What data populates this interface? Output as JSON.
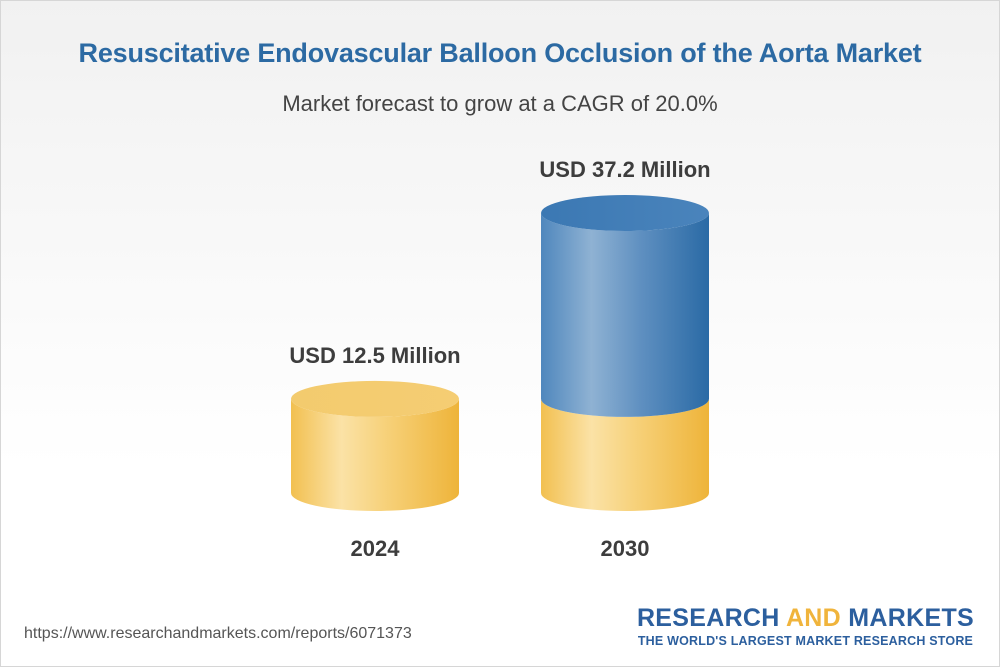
{
  "header": {
    "title": "Resuscitative Endovascular Balloon Occlusion of the Aorta Market",
    "subtitle": "Market forecast to grow at a CAGR of 20.0%"
  },
  "chart_data": {
    "type": "bar",
    "categories": [
      "2024",
      "2030"
    ],
    "values": [
      12.5,
      37.2
    ],
    "value_labels": [
      "USD 12.5 Million",
      "USD 37.2 Million"
    ],
    "unit": "USD Million",
    "base_segment_value": 12.5,
    "colors": {
      "base": "#f2c25d",
      "growth": "#2f6ea8"
    },
    "title": "Resuscitative Endovascular Balloon Occlusion of the Aorta Market",
    "subtitle": "Market forecast to grow at a CAGR of 20.0%",
    "grid": false
  },
  "footer": {
    "url": "https://www.researchandmarkets.com/reports/6071373",
    "brand_part1": "RESEARCH ",
    "brand_part2": "AND",
    "brand_part3": " MARKETS",
    "tagline": "THE WORLD'S LARGEST MARKET RESEARCH STORE"
  }
}
